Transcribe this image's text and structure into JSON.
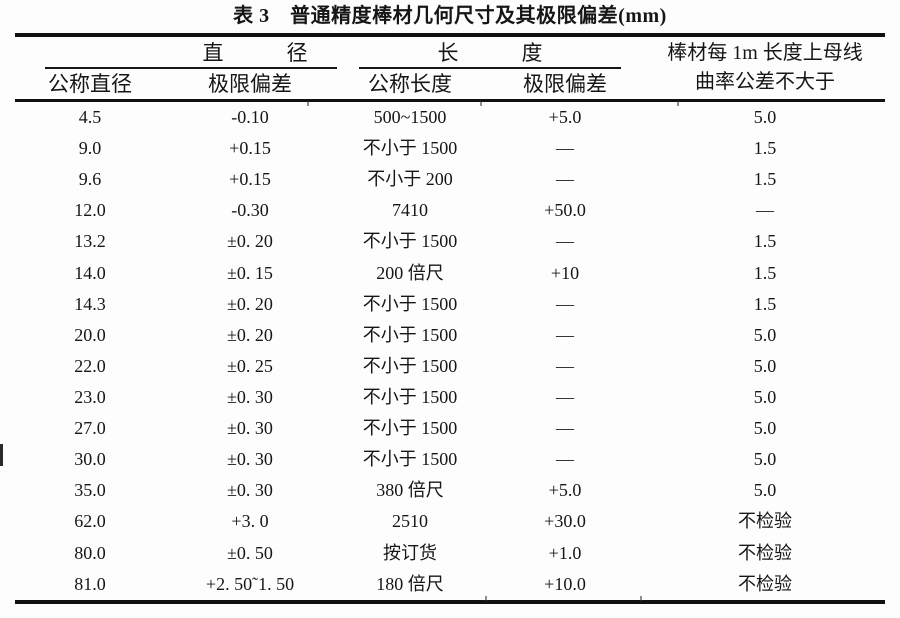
{
  "title": "表 3　普通精度棒材几何尺寸及其极限偏差(mm)",
  "table": {
    "group_headers": {
      "diameter": "直　　　径",
      "length": "长　　　度",
      "curvature_line1": "棒材每 1m 长度上母线",
      "curvature_line2": "曲率公差不大于"
    },
    "subheaders": {
      "nominal_diameter": "公称直径",
      "diameter_deviation": "极限偏差",
      "nominal_length": "公称长度",
      "length_deviation": "极限偏差"
    },
    "columns": [
      "公称直径",
      "极限偏差",
      "公称长度",
      "极限偏差",
      "棒材每 1m 长度上母线曲率公差不大于"
    ],
    "rows": [
      [
        "4.5",
        "-0.10",
        "500~1500",
        "+5.0",
        "5.0"
      ],
      [
        "9.0",
        "+0.15",
        "不小于 1500",
        "—",
        "1.5"
      ],
      [
        "9.6",
        "+0.15",
        "不小于 200",
        "—",
        "1.5"
      ],
      [
        "12.0",
        "-0.30",
        "7410",
        "+50.0",
        "—"
      ],
      [
        "13.2",
        "±0. 20",
        "不小于 1500",
        "—",
        "1.5"
      ],
      [
        "14.0",
        "±0. 15",
        "200 倍尺",
        "+10",
        "1.5"
      ],
      [
        "14.3",
        "±0. 20",
        "不小于 1500",
        "—",
        "1.5"
      ],
      [
        "20.0",
        "±0. 20",
        "不小于 1500",
        "—",
        "5.0"
      ],
      [
        "22.0",
        "±0. 25",
        "不小于 1500",
        "—",
        "5.0"
      ],
      [
        "23.0",
        "±0. 30",
        "不小于 1500",
        "—",
        "5.0"
      ],
      [
        "27.0",
        "±0. 30",
        "不小于 1500",
        "—",
        "5.0"
      ],
      [
        "30.0",
        "±0. 30",
        "不小于 1500",
        "—",
        "5.0"
      ],
      [
        "35.0",
        "±0. 30",
        "380 倍尺",
        "+5.0",
        "5.0"
      ],
      [
        "62.0",
        "+3. 0",
        "2510",
        "+30.0",
        "不检验"
      ],
      [
        "80.0",
        "±0. 50",
        "按订货",
        "+1.0",
        "不检验"
      ],
      [
        "81.0",
        "+2. 50˜1. 50",
        "180 倍尺",
        "+10.0",
        "不检验"
      ]
    ]
  },
  "colors": {
    "ink": "#161616",
    "rule": "#111111",
    "paper": "#fdfdfd"
  }
}
